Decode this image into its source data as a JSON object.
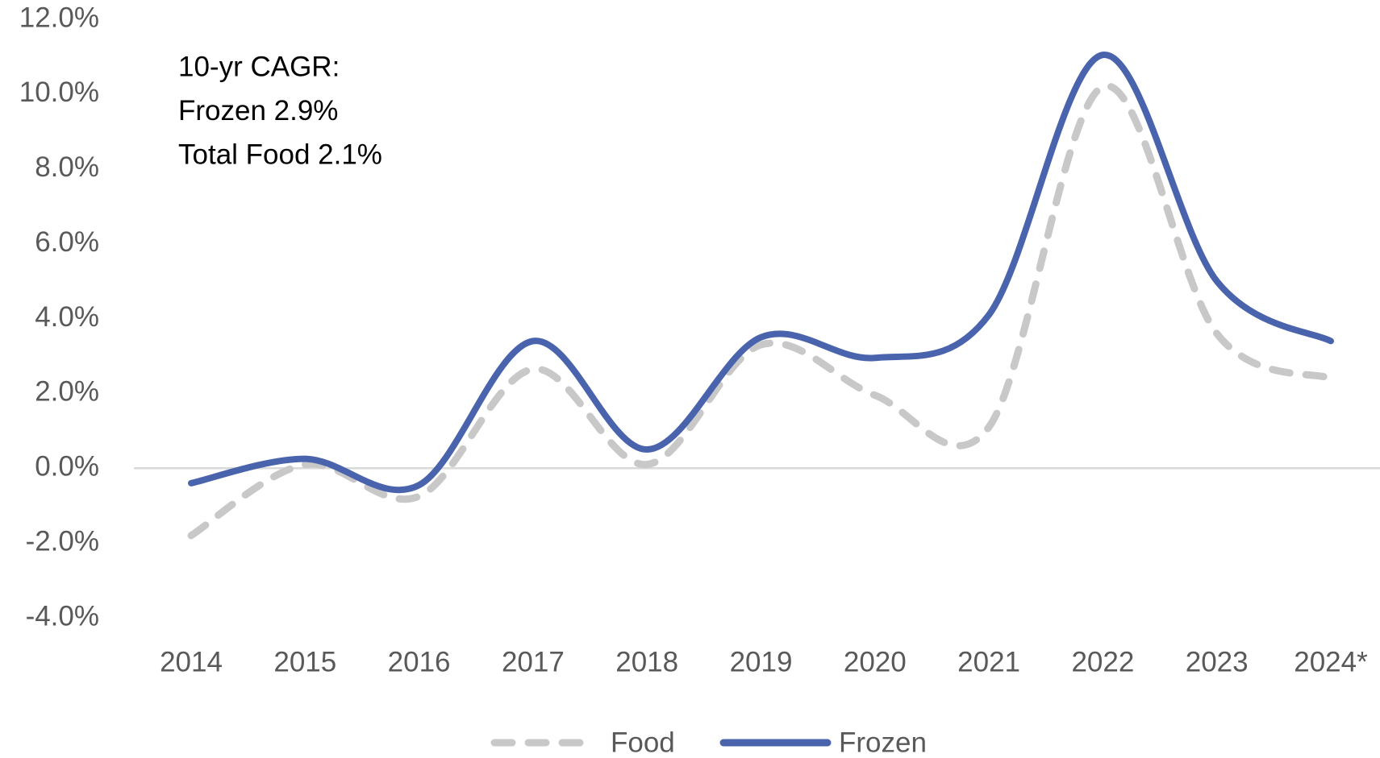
{
  "chart_data": {
    "type": "line",
    "annotations": [
      "10-yr CAGR:",
      "Frozen 2.9%",
      "Total Food 2.1%"
    ],
    "categories": [
      "2014",
      "2015",
      "2016",
      "2017",
      "2018",
      "2019",
      "2020",
      "2021",
      "2022",
      "2023",
      "2024*"
    ],
    "series": [
      {
        "name": "Food",
        "color": "#c8c8c8",
        "dashed": true,
        "values": [
          -1.8,
          0.1,
          -0.75,
          2.65,
          0.1,
          3.3,
          1.95,
          1.1,
          10.2,
          3.6,
          2.4
        ]
      },
      {
        "name": "Frozen",
        "color": "#4a63ad",
        "dashed": false,
        "values": [
          -0.4,
          0.25,
          -0.45,
          3.4,
          0.5,
          3.5,
          2.95,
          4.1,
          11.05,
          5.0,
          3.4
        ]
      }
    ],
    "ylim": [
      -4,
      12
    ],
    "yticks": [
      {
        "value": -4,
        "label": "-4.0%"
      },
      {
        "value": -2,
        "label": "-2.0%"
      },
      {
        "value": 0,
        "label": "0.0%"
      },
      {
        "value": 2,
        "label": "2.0%"
      },
      {
        "value": 4,
        "label": "4.0%"
      },
      {
        "value": 6,
        "label": "6.0%"
      },
      {
        "value": 8,
        "label": "8.0%"
      },
      {
        "value": 10,
        "label": "10.0%"
      },
      {
        "value": 12,
        "label": "12.0%"
      }
    ],
    "legend": "bottom"
  }
}
